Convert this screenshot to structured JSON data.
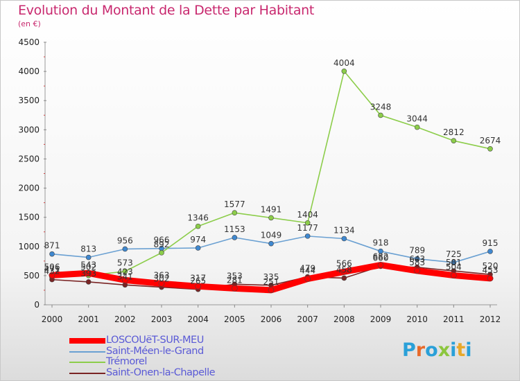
{
  "header": {
    "title": "Evolution du Montant de la Dette par Habitant",
    "subtitle": "(en €)"
  },
  "logo": {
    "text": "Proxiti",
    "colors": [
      "#2aa0d8",
      "#e86a2a",
      "#2aa0d8",
      "#8cc63e",
      "#2aa0d8",
      "#e8a82a",
      "#2aa0d8"
    ]
  },
  "chart_data": {
    "type": "line",
    "title": "Evolution du Montant de la Dette par Habitant",
    "ylabel": "(en €)",
    "xlabel": "",
    "x": [
      "2000",
      "2001",
      "2002",
      "2003",
      "2004",
      "2005",
      "2006",
      "2007",
      "2008",
      "2009",
      "2010",
      "2011",
      "2012"
    ],
    "ylim": [
      0,
      4500
    ],
    "yticks": [
      0,
      500,
      1000,
      1500,
      2000,
      2500,
      3000,
      3500,
      4000,
      4500
    ],
    "grid": false,
    "legend_position": "bottom-left",
    "series": [
      {
        "name": "LOSCOUëT-SUR-MEU",
        "color": "#ff0000",
        "values": [
          506,
          543,
          423,
          363,
          317,
          281,
          251,
          444,
          566,
          682,
          583,
          504,
          453
        ]
      },
      {
        "name": "Saint-Méen-le-Grand",
        "color": "#6aa0d2",
        "values": [
          871,
          813,
          956,
          966,
          974,
          1153,
          1049,
          1177,
          1134,
          918,
          789,
          725,
          915
        ]
      },
      {
        "name": "Trémorel",
        "color": "#8ccd4a",
        "values": [
          471,
          502,
          573,
          892,
          1346,
          1577,
          1491,
          1404,
          4004,
          3248,
          3044,
          2812,
          2674
        ]
      },
      {
        "name": "Saint-Onen-la-Chapelle",
        "color": "#7a2424",
        "values": [
          432,
          393,
          341,
          302,
          265,
          353,
          335,
          479,
          458,
          660,
          643,
          581,
          520
        ]
      }
    ]
  }
}
